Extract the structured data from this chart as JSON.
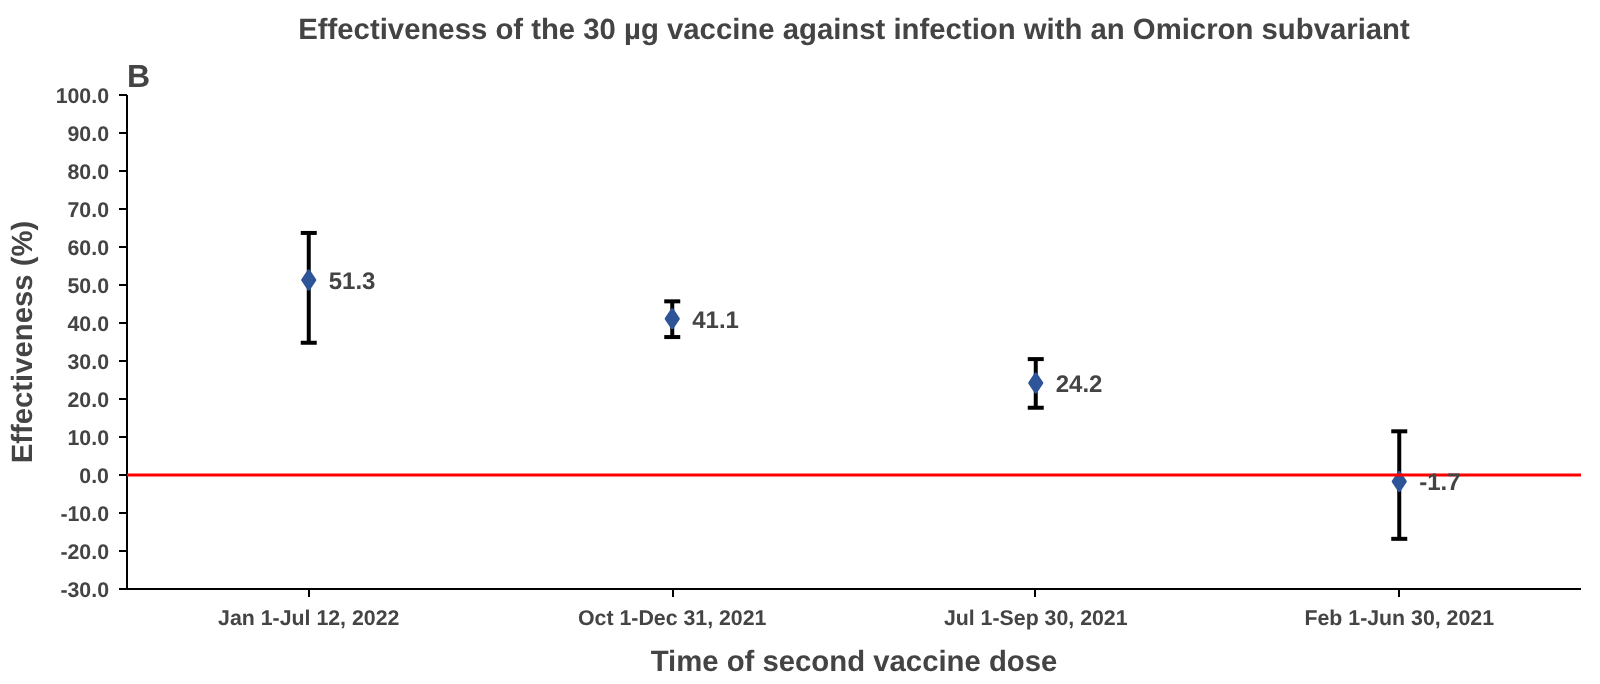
{
  "chart_data": {
    "type": "scatter",
    "title": "Effectiveness of the 30 µg vaccine against infection with an Omicron subvariant",
    "xlabel": "Time of second vaccine dose",
    "ylabel": "Effectiveness (%)",
    "annotations": [
      "B"
    ],
    "categories": [
      "Jan 1-Jul 12, 2022",
      "Oct 1-Dec 31, 2021",
      "Jul 1-Sep 30, 2021",
      "Feb 1-Jun 30, 2021"
    ],
    "series": [
      {
        "color": "#2e5597",
        "values": [
          51.3,
          41.1,
          24.2,
          -1.7
        ],
        "errors": [
          [
            34.8,
            63.7
          ],
          [
            36.3,
            45.7
          ],
          [
            17.7,
            30.5
          ],
          [
            -16.8,
            11.5
          ]
        ]
      }
    ],
    "ylim": [
      -30,
      100
    ],
    "yticks": [
      {
        "value": -30,
        "label": "-30.0"
      },
      {
        "value": -20,
        "label": "-20.0"
      },
      {
        "value": -10,
        "label": "-10.0"
      },
      {
        "value": 0,
        "label": "0.0"
      },
      {
        "value": 10,
        "label": "10.0"
      },
      {
        "value": 20,
        "label": "20.0"
      },
      {
        "value": 30,
        "label": "30.0"
      },
      {
        "value": 40,
        "label": "40.0"
      },
      {
        "value": 50,
        "label": "50.0"
      },
      {
        "value": 60,
        "label": "60.0"
      },
      {
        "value": 70,
        "label": "70.0"
      },
      {
        "value": 80,
        "label": "80.0"
      },
      {
        "value": 90,
        "label": "90.0"
      },
      {
        "value": 100,
        "label": "100.0"
      }
    ],
    "ref_lines": [
      {
        "axis": "y",
        "value": 0,
        "color": "#ff0000",
        "line_style": "solid"
      }
    ],
    "data_labels": true,
    "marker": "diamond",
    "grid": false
  }
}
